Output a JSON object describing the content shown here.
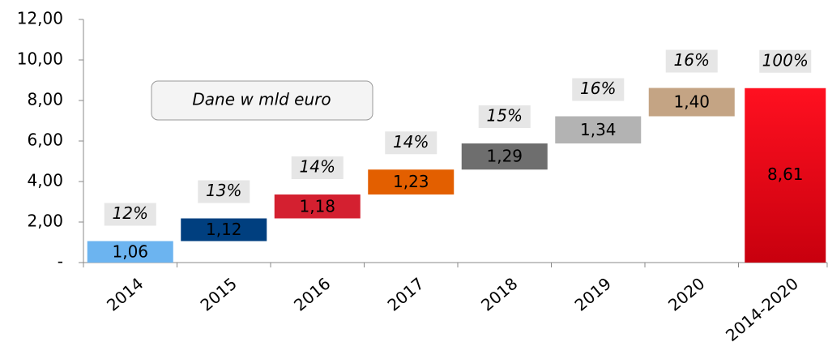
{
  "chart_data": {
    "type": "waterfall",
    "annotations": [
      "Dane w mld euro"
    ],
    "categories": [
      "2014",
      "2015",
      "2016",
      "2017",
      "2018",
      "2019",
      "2020",
      "2014-2020"
    ],
    "values": [
      1.06,
      1.12,
      1.18,
      1.23,
      1.29,
      1.34,
      1.4,
      8.61
    ],
    "value_labels": [
      "1,06",
      "1,12",
      "1,18",
      "1,23",
      "1,29",
      "1,34",
      "1,40",
      "8,61"
    ],
    "share_labels": [
      "12%",
      "13%",
      "14%",
      "14%",
      "15%",
      "16%",
      "16%",
      "100%"
    ],
    "is_total": [
      false,
      false,
      false,
      false,
      false,
      false,
      false,
      true
    ],
    "colors": [
      "#6cb4f0",
      "#003f7f",
      "#d42030",
      "#e35f00",
      "#6e6e6e",
      "#b3b3b3",
      "#c4a484",
      "#e8001c"
    ],
    "label_colors": [
      "#ffffff",
      "#ffffff",
      "#ffffff",
      "#000000",
      "#000000",
      "#000000",
      "#000000",
      "#ffffff"
    ],
    "ylim": [
      0,
      12
    ],
    "yticks": [
      {
        "value": 0,
        "label": "-"
      },
      {
        "value": 2,
        "label": "2,00"
      },
      {
        "value": 4,
        "label": "4,00"
      },
      {
        "value": 6,
        "label": "6,00"
      },
      {
        "value": 8,
        "label": "8,00"
      },
      {
        "value": 10,
        "label": "10,00"
      },
      {
        "value": 12,
        "label": "12,00"
      }
    ],
    "grid": false
  }
}
